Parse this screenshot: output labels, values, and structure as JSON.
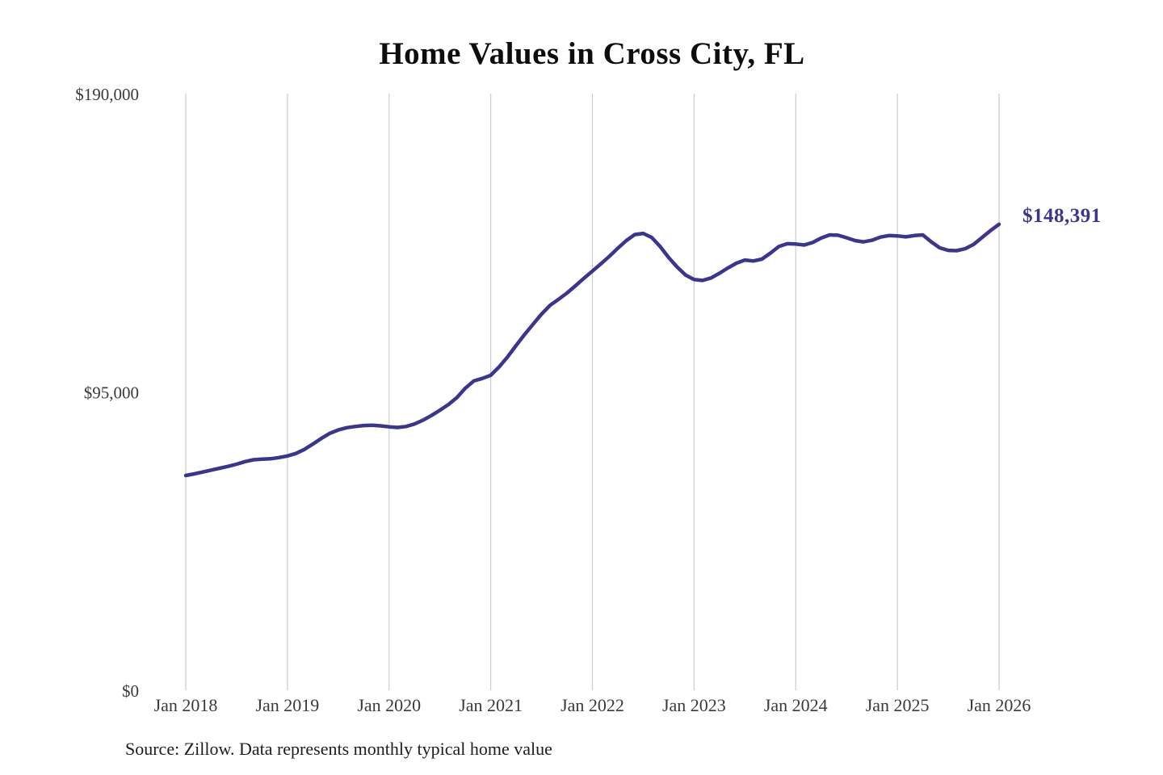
{
  "chart": {
    "title": "Home Values in Cross City, FL",
    "end_label": "$148,391",
    "source_note": "Source: Zillow. Data represents monthly typical home value"
  },
  "colors": {
    "line": "#3b3590",
    "grid": "#cccccc",
    "axis_text": "#3a3a3a",
    "title_text": "#0d0d0d",
    "end_label_text": "#3b3590",
    "background": "#ffffff"
  },
  "chart_data": {
    "type": "line",
    "title": "Home Values in Cross City, FL",
    "xlabel": "",
    "ylabel": "",
    "ylim": [
      0,
      190000
    ],
    "grid": "vertical-only",
    "legend": "none",
    "frequency": "monthly",
    "x_start": "Jan 2018",
    "x_end": "Jan 2026",
    "x_ticks": [
      {
        "label": "Jan 2018",
        "month_index": 0
      },
      {
        "label": "Jan 2019",
        "month_index": 12
      },
      {
        "label": "Jan 2020",
        "month_index": 24
      },
      {
        "label": "Jan 2021",
        "month_index": 36
      },
      {
        "label": "Jan 2022",
        "month_index": 48
      },
      {
        "label": "Jan 2023",
        "month_index": 60
      },
      {
        "label": "Jan 2024",
        "month_index": 72
      },
      {
        "label": "Jan 2025",
        "month_index": 84
      },
      {
        "label": "Jan 2026",
        "month_index": 96
      }
    ],
    "y_ticks": [
      {
        "label": "$190,000",
        "value": 190000
      },
      {
        "label": "$95,000",
        "value": 95000
      },
      {
        "label": "$0",
        "value": 0
      }
    ],
    "end_annotation": {
      "label": "$148,391",
      "value": 148391,
      "x": "Jan 2026"
    },
    "series": [
      {
        "name": "Monthly typical home value",
        "final_value": 148391,
        "values": [
          68400,
          68900,
          69500,
          70100,
          70700,
          71300,
          72000,
          72800,
          73400,
          73600,
          73700,
          74100,
          74600,
          75400,
          76700,
          78400,
          80200,
          81800,
          82900,
          83600,
          84000,
          84300,
          84400,
          84200,
          83900,
          83700,
          84000,
          84800,
          86000,
          87500,
          89200,
          91000,
          93200,
          96200,
          98500,
          99300,
          100300,
          103000,
          106200,
          109800,
          113300,
          116600,
          119800,
          122600,
          124500,
          126500,
          128800,
          131200,
          133500,
          135800,
          138200,
          140800,
          143200,
          145100,
          145500,
          144200,
          141300,
          137800,
          134800,
          132200,
          130800,
          130500,
          131300,
          132800,
          134500,
          136000,
          137000,
          136700,
          137300,
          139200,
          141300,
          142200,
          142100,
          141800,
          142600,
          144000,
          145000,
          144900,
          144100,
          143200,
          142800,
          143300,
          144300,
          144800,
          144700,
          144400,
          144800,
          145000,
          142800,
          140900,
          140100,
          140000,
          140600,
          142000,
          144200,
          146400,
          148391
        ]
      }
    ]
  }
}
